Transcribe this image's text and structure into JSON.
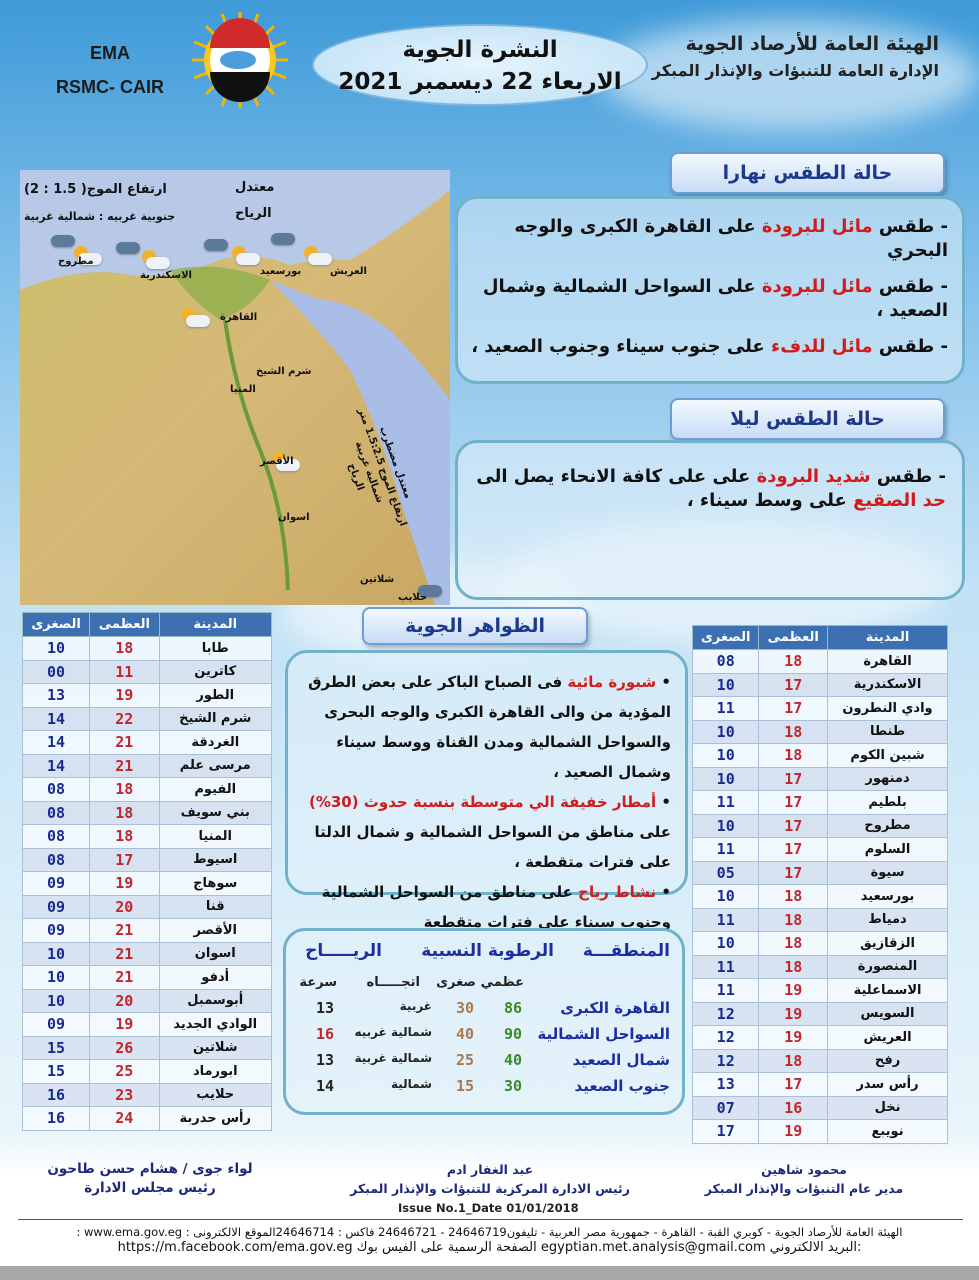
{
  "header": {
    "org_line1": "الهيئة العامة للأرصاد الجوية",
    "org_line2": "الإدارة العامة للتنبؤات والإنذار المبكر",
    "title": "النشرة الجوية",
    "date": "الاربعاء 22 ديسمبر 2021",
    "ema": "EMA",
    "rsmc": "RSMC- CAIR",
    "logo_text": "EMA"
  },
  "map": {
    "sea_state": "معتدل",
    "wave_label": "ارتفاع الموج( 1.5 : 2)",
    "wind_label": "الرياح",
    "wind_dir": "جنوبية غربيه : شمالية غربية",
    "cities": [
      "مطروح",
      "الاسكندرية",
      "بورسعيد",
      "العريش",
      "القاهرة",
      "المنيا",
      "الأقصر",
      "اسوان",
      "شرم الشيخ",
      "شلاتين",
      "حلايب"
    ],
    "red_sea": {
      "state": "معتدل مضطرب",
      "wave": "ارتفاع الموج 1.5:2.5 متر",
      "wind": "الرياح",
      "wind_dir": "شمالية غربية"
    }
  },
  "day": {
    "title": "حالة الطقس نهارا",
    "bullets": [
      [
        {
          "t": "طقس "
        },
        {
          "t": "مائل للبرودة",
          "hl": true
        },
        {
          "t": " على القاهرة الكبرى والوجه البحري"
        }
      ],
      [
        {
          "t": "طقس "
        },
        {
          "t": "مائل للبرودة",
          "hl": true
        },
        {
          "t": " على السواحل الشمالية وشمال الصعيد ،"
        }
      ],
      [
        {
          "t": "طقس "
        },
        {
          "t": "مائل للدفء",
          "hl": true
        },
        {
          "t": " على جنوب سيناء وجنوب الصعيد ،"
        }
      ]
    ]
  },
  "night": {
    "title": "حالة الطقس ليلا",
    "bullets": [
      [
        {
          "t": "طقس "
        },
        {
          "t": "شديد البرودة",
          "hl": true
        },
        {
          "t": " على على كافة الانحاء يصل الى "
        },
        {
          "t": "حد الصقيع",
          "hl": true
        },
        {
          "t": " على وسط سيناء ،"
        }
      ]
    ]
  },
  "phenomena": {
    "title": "الظواهر الجوية",
    "bullets": [
      [
        {
          "t": "شبورة مائية",
          "hl": true
        },
        {
          "t": " فى الصباح الباكر على بعض الطرق المؤدية من والى القاهرة الكبرى والوجه البحرى والسواحل الشمالية ومدن القناة ووسط سيناء وشمال الصعيد ،"
        }
      ],
      [
        {
          "t": "أمطار خفيفة الي متوسطة بنسبة حدوث (30%)",
          "hl": true
        },
        {
          "t": " على مناطق من السواحل الشمالية و شمال الدلتا على فترات متقطعة ،"
        }
      ],
      [
        {
          "t": "نشاط رياح",
          "hl": true
        },
        {
          "t": " على مناطق من السواحل الشمالية وجنوب سيناء على فترات متقطعة"
        }
      ]
    ]
  },
  "table_headers": {
    "city": "المدينة",
    "max": "العظمى",
    "min": "الصغرى"
  },
  "table_left": [
    [
      "طابا",
      "18",
      "10"
    ],
    [
      "كاترين",
      "11",
      "00"
    ],
    [
      "الطور",
      "19",
      "13"
    ],
    [
      "شرم الشيخ",
      "22",
      "14"
    ],
    [
      "الغردقة",
      "21",
      "14"
    ],
    [
      "مرسى علم",
      "21",
      "14"
    ],
    [
      "الفيوم",
      "18",
      "08"
    ],
    [
      "بني سويف",
      "18",
      "08"
    ],
    [
      "المنيا",
      "18",
      "08"
    ],
    [
      "اسيوط",
      "17",
      "08"
    ],
    [
      "سوهاج",
      "19",
      "09"
    ],
    [
      "قنا",
      "20",
      "09"
    ],
    [
      "الأقصر",
      "21",
      "09"
    ],
    [
      "اسوان",
      "21",
      "10"
    ],
    [
      "أدفو",
      "21",
      "10"
    ],
    [
      "أبوسمبل",
      "20",
      "10"
    ],
    [
      "الوادي الجديد",
      "19",
      "09"
    ],
    [
      "شلاتين",
      "26",
      "15"
    ],
    [
      "ابورماد",
      "25",
      "15"
    ],
    [
      "حلايب",
      "23",
      "16"
    ],
    [
      "رأس حدربة",
      "24",
      "16"
    ]
  ],
  "table_right": [
    [
      "القاهرة",
      "18",
      "08"
    ],
    [
      "الاسكندرية",
      "17",
      "10"
    ],
    [
      "وادي النطرون",
      "17",
      "11"
    ],
    [
      "طنطا",
      "18",
      "10"
    ],
    [
      "شبين الكوم",
      "18",
      "10"
    ],
    [
      "دمنهور",
      "17",
      "10"
    ],
    [
      "بلطيم",
      "17",
      "11"
    ],
    [
      "مطروح",
      "17",
      "10"
    ],
    [
      "السلوم",
      "17",
      "11"
    ],
    [
      "سيوة",
      "17",
      "05"
    ],
    [
      "بورسعيد",
      "18",
      "10"
    ],
    [
      "دمياط",
      "18",
      "11"
    ],
    [
      "الزقازيق",
      "18",
      "10"
    ],
    [
      "المنصورة",
      "18",
      "11"
    ],
    [
      "الاسماعلية",
      "19",
      "11"
    ],
    [
      "السويس",
      "19",
      "12"
    ],
    [
      "العريش",
      "19",
      "12"
    ],
    [
      "رفح",
      "18",
      "12"
    ],
    [
      "رأس سدر",
      "17",
      "13"
    ],
    [
      "نخل",
      "16",
      "07"
    ],
    [
      "نويبع",
      "19",
      "17"
    ]
  ],
  "humidity": {
    "h_region": "المنطقـــة",
    "h_humidity": "الرطوبة النسبية",
    "h_wind": "الريـــــاح",
    "h_max": "عظمي",
    "h_min": "صغرى",
    "h_dir": "اتجـــــاه",
    "h_speed": "سرعة",
    "rows": [
      [
        "القاهرة الكبرى",
        "86",
        "30",
        "غربية",
        "13"
      ],
      [
        "السواحل الشمالية",
        "90",
        "40",
        "شمالية غربيه",
        "16"
      ],
      [
        "شمال الصعيد",
        "40",
        "25",
        "شمالية غربية",
        "13"
      ],
      [
        "جنوب الصعيد",
        "30",
        "15",
        "شمالية",
        "14"
      ]
    ]
  },
  "signatures": [
    {
      "name": "محمود شاهين",
      "role": "مدير عام التنبؤات والإنذار المبكر"
    },
    {
      "name": "عبد الغفار ادم",
      "role": "رئيس الادارة المركزية للتنبؤات والإنذار المبكر"
    },
    {
      "name": "لواء جوى / هشام حسن طاحون",
      "role": "رئيس مجلس الادارة"
    }
  ],
  "issue": "Issue No.1_Date 01/01/2018",
  "footer": {
    "line1": "الهيئة العامة للأرصاد الجوية - كوبري القبة - القاهرة - جمهورية مصر العربية - تليفون24646719 - 24646721 فاكس : 24646714الموقع الالكترونى : www.ema.gov.eg :",
    "line2": ":البريد الالكتروني egyptian.met.analysis@gmail.com الصفحة الرسمية على الفيس بوك https://m.facebook.com/ema.gov.eg"
  },
  "colors": {
    "highlight": "#d01c1c",
    "max_temp": "#c0272d",
    "min_temp": "#1a2b8f",
    "title_blue": "#1d3a8a"
  }
}
